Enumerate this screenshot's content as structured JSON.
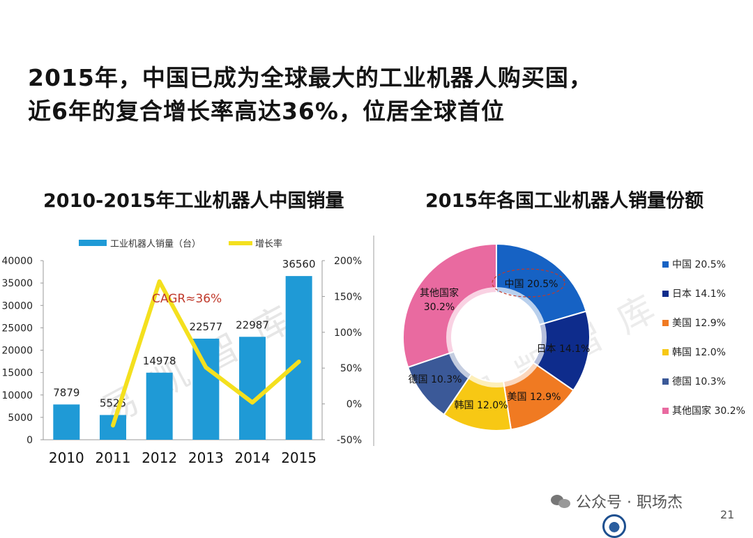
{
  "headline": {
    "line1": "2015年，中国已成为全球最大的工业机器人购买国，",
    "line2": "近6年的复合增长率高达36%，位居全球首位"
  },
  "footer": {
    "wechat_icon": "wechat-icon",
    "text": "公众号 · 职场杰",
    "page": "21"
  },
  "colors": {
    "bar": "#1f9ad6",
    "line": "#f4e01e",
    "cagr": "#c0392b"
  },
  "chart_data": [
    {
      "type": "bar",
      "title": "2010-2015年工业机器人中国销量",
      "categories": [
        "2010",
        "2011",
        "2012",
        "2013",
        "2014",
        "2015"
      ],
      "series": [
        {
          "name": "工业机器人销量（台）",
          "axis": "left",
          "type": "bar",
          "values": [
            7879,
            5525,
            14978,
            22577,
            22987,
            36560
          ]
        },
        {
          "name": "增长率",
          "axis": "right",
          "type": "line",
          "values_pct": [
            null,
            -30,
            171,
            51,
            2,
            59
          ]
        }
      ],
      "ylim": [
        0,
        40000
      ],
      "yticks": [
        "0",
        "5000",
        "10000",
        "15000",
        "20000",
        "25000",
        "30000",
        "35000",
        "40000"
      ],
      "y2lim": [
        -50,
        200
      ],
      "y2ticks": [
        "-50%",
        "0%",
        "50%",
        "100%",
        "150%",
        "200%"
      ],
      "data_labels": [
        "7879",
        "5525",
        "14978",
        "22577",
        "22987",
        "36560"
      ],
      "annotation": "CAGR≈36%",
      "legend_position": "top",
      "watermark": "易凯智库",
      "grid": false
    },
    {
      "type": "pie",
      "title": "2015年各国工业机器人销量份额",
      "donut": true,
      "slices": [
        {
          "label": "中国",
          "value": 20.5,
          "display": "中国 20.5%",
          "color": "#1662c4"
        },
        {
          "label": "日本",
          "value": 14.1,
          "display": "日本 14.1%",
          "color": "#0e2c8c"
        },
        {
          "label": "美国",
          "value": 12.9,
          "display": "美国 12.9%",
          "color": "#f07a22"
        },
        {
          "label": "韩国",
          "value": 12.0,
          "display": "韩国 12.0%",
          "color": "#f7c814"
        },
        {
          "label": "德国",
          "value": 10.3,
          "display": "德国 10.3%",
          "color": "#3b5998"
        },
        {
          "label": "其他国家",
          "value": 30.2,
          "display": "其他国家 30.2%",
          "color": "#e96aa0"
        }
      ],
      "slice_labels": [
        "中国 20.5%",
        "日本 14.1%",
        "美国 12.9%",
        "韩国 12.0%",
        "德国 10.3%",
        "其他国家",
        "30.2%"
      ],
      "legend_position": "right",
      "watermark": "易凯智库"
    }
  ]
}
